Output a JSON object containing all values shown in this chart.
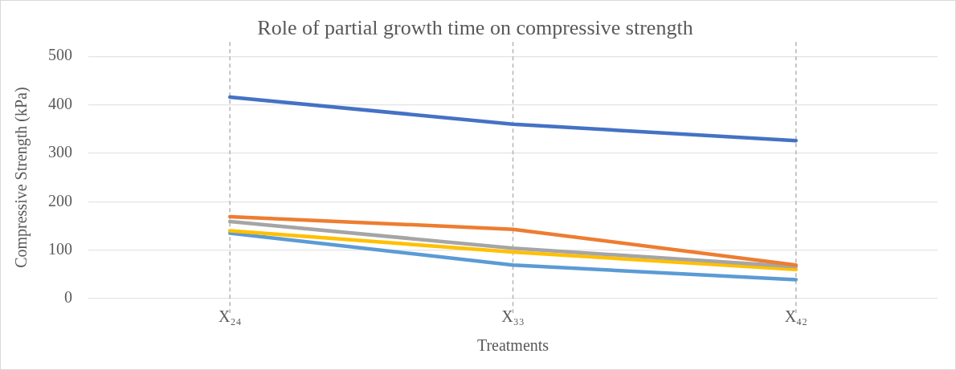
{
  "chart_data": {
    "type": "line",
    "title": "Role of partial growth time on compressive strength",
    "xlabel": "Treatments",
    "ylabel": "Compressive Strength (kPa)",
    "categories": [
      "X₂₄",
      "X₃₃",
      "X₄₂"
    ],
    "series": [
      {
        "color": "#4472c4",
        "values": [
          416,
          360,
          326
        ]
      },
      {
        "color": "#ed7d31",
        "values": [
          169,
          143,
          69
        ]
      },
      {
        "color": "#a5a5a5",
        "values": [
          159,
          104,
          66
        ]
      },
      {
        "color": "#ffc000",
        "values": [
          140,
          96,
          60
        ]
      },
      {
        "color": "#5b9bd5",
        "values": [
          135,
          69,
          39
        ]
      }
    ],
    "ylim": [
      0,
      500
    ],
    "yticks": [
      0,
      100,
      200,
      300,
      400,
      500
    ],
    "grid": "y",
    "legend": false,
    "marker": "none",
    "line_style": "solid",
    "ref_lines": [
      {
        "axis": "x",
        "value": "X₂₄",
        "color": "#b4b4b4",
        "line_style": "dashed"
      },
      {
        "axis": "x",
        "value": "X₃₃",
        "color": "#b4b4b4",
        "line_style": "dashed"
      },
      {
        "axis": "x",
        "value": "X₄₂",
        "color": "#b4b4b4",
        "line_style": "dashed"
      }
    ]
  }
}
